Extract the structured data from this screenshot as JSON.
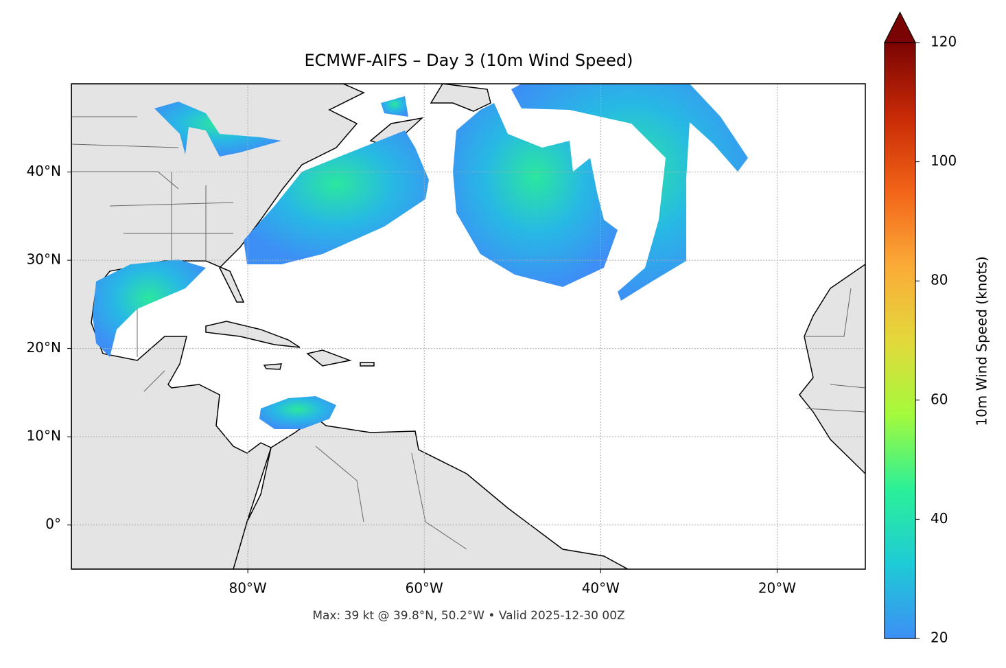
{
  "chart_data": {
    "type": "map",
    "title": "ECMWF-AIFS – Day 3 (10m Wind Speed)",
    "annotation": "Max: 39 kt @ 39.8°N, 50.2°W • Valid 2025-12-30 00Z",
    "xlim": [
      -100,
      -10
    ],
    "ylim": [
      -5,
      50
    ],
    "xticks": [
      {
        "value": -80,
        "label": "80°W"
      },
      {
        "value": -60,
        "label": "60°W"
      },
      {
        "value": -40,
        "label": "40°W"
      },
      {
        "value": -20,
        "label": "20°W"
      }
    ],
    "yticks": [
      {
        "value": 0,
        "label": "0°"
      },
      {
        "value": 10,
        "label": "10°N"
      },
      {
        "value": 20,
        "label": "20°N"
      },
      {
        "value": 30,
        "label": "30°N"
      },
      {
        "value": 40,
        "label": "40°N"
      }
    ],
    "grid": true,
    "colorbar": {
      "label": "10m Wind Speed (knots)",
      "lim": [
        20,
        120
      ],
      "ticks": [
        20,
        40,
        60,
        80,
        100,
        120
      ],
      "extend": "max",
      "colors": [
        "#3d8ff5",
        "#1ecbd6",
        "#2bf098",
        "#a4fa3c",
        "#e3d83b",
        "#fbab38",
        "#f26418",
        "#c82a06",
        "#7a0403"
      ]
    }
  }
}
